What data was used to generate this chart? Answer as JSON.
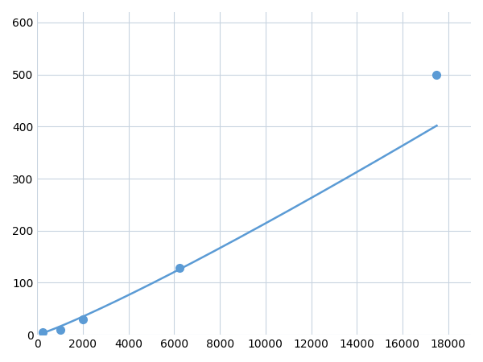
{
  "x_points": [
    250,
    1000,
    2000,
    6250,
    17500
  ],
  "y_points": [
    5,
    10,
    30,
    128,
    500
  ],
  "line_color": "#5b9bd5",
  "marker_color": "#5b9bd5",
  "marker_size": 7,
  "line_width": 1.8,
  "xlim": [
    0,
    19000
  ],
  "ylim": [
    0,
    620
  ],
  "xticks": [
    0,
    2000,
    4000,
    6000,
    8000,
    10000,
    12000,
    14000,
    16000,
    18000
  ],
  "yticks": [
    0,
    100,
    200,
    300,
    400,
    500,
    600
  ],
  "grid_color": "#c8d4e0",
  "background_color": "#ffffff",
  "tick_fontsize": 10
}
